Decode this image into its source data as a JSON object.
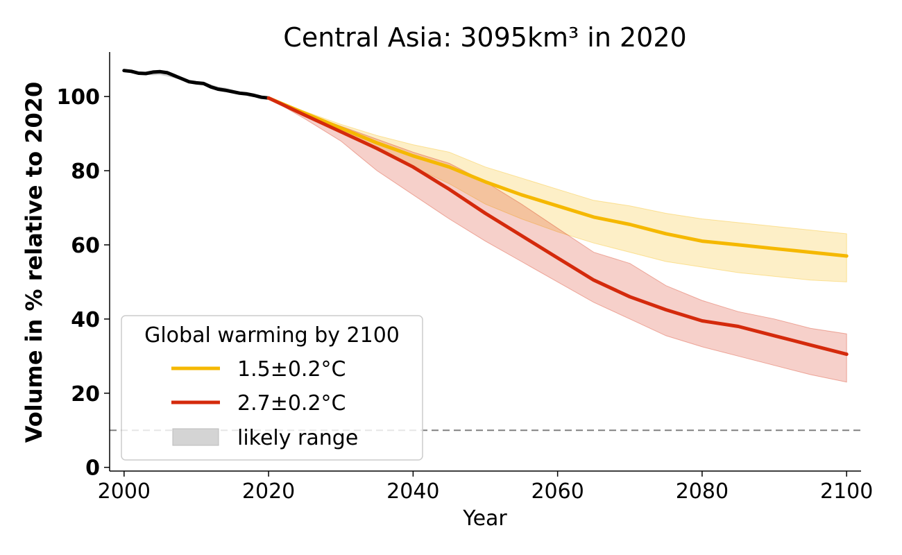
{
  "chart_data": {
    "type": "line",
    "title": "Central Asia: 3095km³ in 2020",
    "xlabel": "Year",
    "ylabel": "Volume in % relative to 2020",
    "xlim": [
      1998,
      2102
    ],
    "ylim": [
      -1,
      112
    ],
    "xticks": [
      2000,
      2020,
      2040,
      2060,
      2080,
      2100
    ],
    "yticks": [
      0,
      20,
      40,
      60,
      80,
      100
    ],
    "grid": false,
    "reference_line": {
      "y": 10,
      "style": "dashed",
      "color": "#808080"
    },
    "legend": {
      "title": "Global warming by 2100",
      "placement": "lower-left",
      "entries": [
        {
          "label": "1.5±0.2°C",
          "kind": "line",
          "color": "#f5b800"
        },
        {
          "label": "2.7±0.2°C",
          "kind": "line",
          "color": "#d42a0c"
        },
        {
          "label": "likely range",
          "kind": "patch",
          "color": "#d4d4d4"
        }
      ]
    },
    "historical": {
      "color": "#000000",
      "x": [
        2000,
        2001,
        2002,
        2003,
        2004,
        2005,
        2006,
        2007,
        2008,
        2009,
        2010,
        2011,
        2012,
        2013,
        2014,
        2015,
        2016,
        2017,
        2018,
        2019,
        2020
      ],
      "y": [
        107.0,
        106.8,
        106.3,
        106.2,
        106.6,
        106.7,
        106.4,
        105.6,
        104.8,
        104.0,
        103.7,
        103.5,
        102.6,
        102.0,
        101.7,
        101.3,
        100.9,
        100.7,
        100.3,
        99.8,
        99.6
      ],
      "lower": [
        107.0,
        106.7,
        106.2,
        105.9,
        105.8,
        105.9,
        105.5,
        105.0,
        104.6,
        104.0,
        103.6,
        103.2,
        102.8,
        102.3,
        101.8,
        101.3,
        100.8,
        100.6,
        100.2,
        99.8,
        99.6
      ],
      "upper": [
        107.0,
        106.9,
        106.5,
        106.4,
        106.8,
        107.0,
        106.8,
        106.0,
        105.1,
        104.3,
        103.9,
        103.8,
        103.2,
        102.6,
        102.3,
        101.8,
        101.3,
        100.9,
        100.5,
        100.0,
        99.6
      ],
      "band_color": "#b0b0b0"
    },
    "series": [
      {
        "name": "1.5±0.2°C",
        "color": "#f5b800",
        "x": [
          2020,
          2025,
          2030,
          2035,
          2040,
          2045,
          2050,
          2055,
          2060,
          2065,
          2070,
          2075,
          2080,
          2085,
          2090,
          2095,
          2100
        ],
        "y": [
          99.6,
          95.5,
          91.5,
          87.5,
          84.0,
          81.0,
          77.0,
          73.5,
          70.5,
          67.5,
          65.5,
          63.0,
          61.0,
          60.0,
          59.0,
          58.0,
          57.0
        ],
        "lower": [
          99.6,
          95.0,
          90.5,
          85.5,
          81.0,
          76.5,
          71.0,
          67.0,
          63.5,
          60.5,
          58.0,
          55.5,
          54.0,
          52.5,
          51.5,
          50.5,
          50.0
        ],
        "upper": [
          99.6,
          96.0,
          92.5,
          89.5,
          87.0,
          85.0,
          81.0,
          78.0,
          75.0,
          72.0,
          70.5,
          68.5,
          67.0,
          66.0,
          65.0,
          64.0,
          63.0
        ]
      },
      {
        "name": "2.7±0.2°C",
        "color": "#d42a0c",
        "x": [
          2020,
          2025,
          2030,
          2035,
          2040,
          2045,
          2050,
          2055,
          2060,
          2065,
          2070,
          2075,
          2080,
          2085,
          2090,
          2095,
          2100
        ],
        "y": [
          99.6,
          95.0,
          90.5,
          86.0,
          81.0,
          75.0,
          68.5,
          62.5,
          56.5,
          50.5,
          46.0,
          42.5,
          39.5,
          38.0,
          35.5,
          33.0,
          30.5
        ],
        "lower": [
          99.6,
          94.0,
          88.0,
          80.0,
          73.5,
          67.0,
          61.0,
          55.5,
          50.0,
          44.5,
          40.0,
          35.5,
          32.5,
          30.0,
          27.5,
          25.0,
          23.0
        ],
        "upper": [
          99.6,
          95.5,
          92.0,
          88.5,
          85.0,
          82.0,
          77.0,
          71.0,
          64.5,
          58.0,
          55.0,
          49.0,
          45.0,
          42.0,
          40.0,
          37.5,
          36.0
        ]
      }
    ]
  }
}
